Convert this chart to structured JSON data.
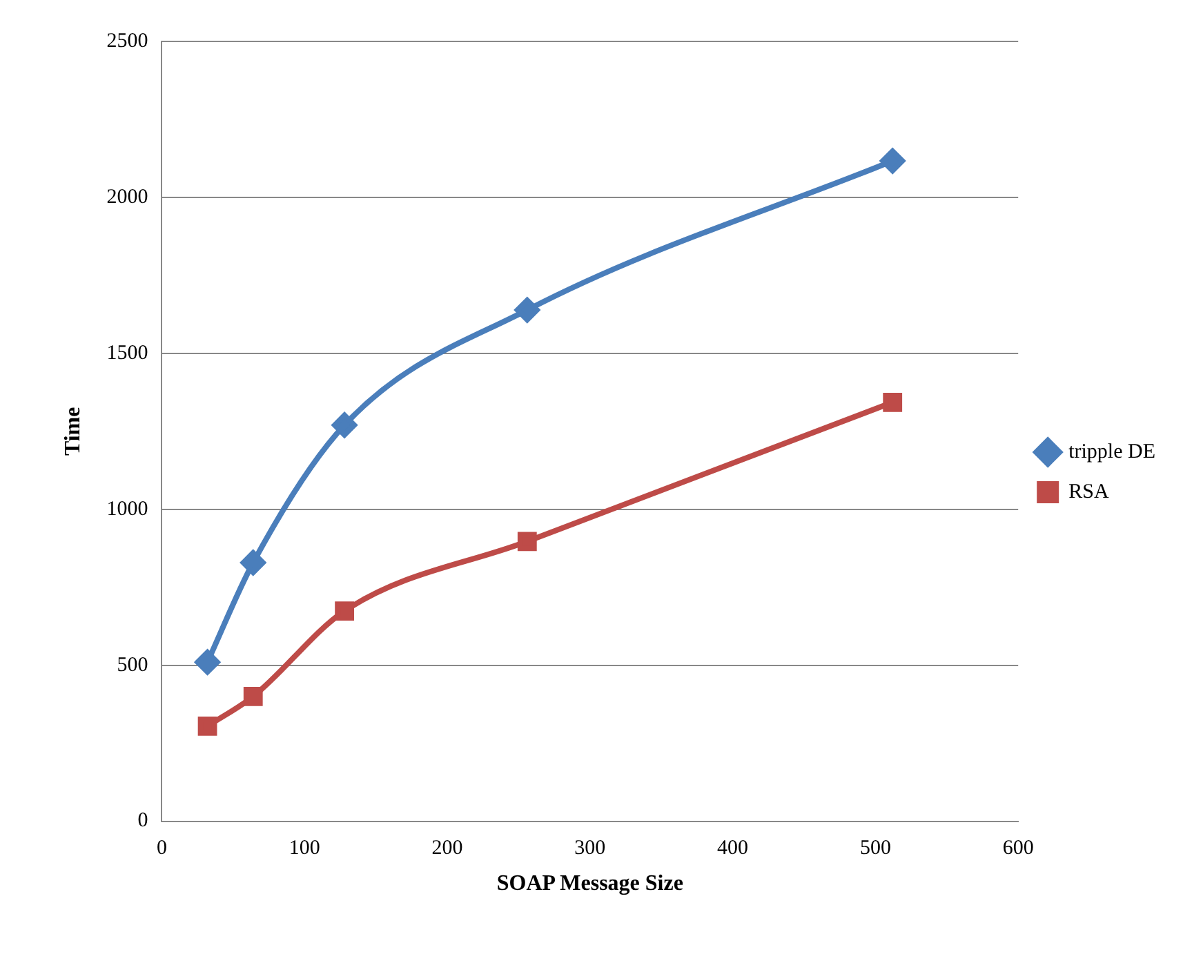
{
  "chart_data": {
    "type": "line",
    "xlabel": "SOAP Message Size",
    "ylabel": "Time",
    "xlim": [
      0,
      600
    ],
    "xticks": [
      0,
      100,
      200,
      300,
      400,
      500,
      600
    ],
    "ylim": [
      0,
      2500
    ],
    "yticks": [
      0,
      500,
      1000,
      1500,
      2000,
      2500
    ],
    "grid": "y",
    "legend": "right",
    "line_style": "solid",
    "x": [
      32,
      64,
      128,
      256,
      512
    ],
    "series": [
      {
        "name": "tripple DE",
        "color": "#4a7ebb",
        "marker": "diamond",
        "values": [
          510,
          829,
          1270,
          1639,
          2117
        ]
      },
      {
        "name": "RSA",
        "color": "#be4b48",
        "marker": "square",
        "values": [
          305,
          400,
          674,
          897,
          1343
        ]
      }
    ]
  }
}
